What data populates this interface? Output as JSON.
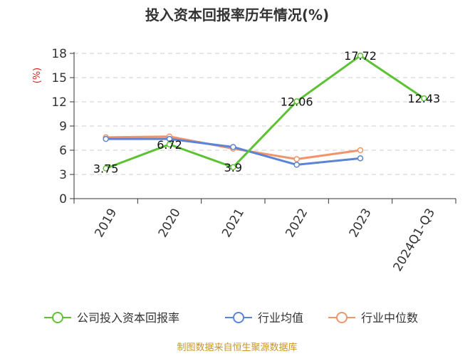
{
  "chart_data": {
    "type": "line",
    "title": "投入资本回报率历年情况(%)",
    "ylabel": "(%)",
    "xlabel": "",
    "categories": [
      "2019",
      "2020",
      "2021",
      "2022",
      "2023",
      "2024Q1-Q3"
    ],
    "yticks": [
      0,
      3,
      6,
      9,
      12,
      15,
      18
    ],
    "ylim": [
      0,
      18
    ],
    "grid": true,
    "legend_position": "bottom",
    "series": [
      {
        "name": "公司投入资本回报率",
        "color": "#5cc234",
        "values": [
          3.75,
          6.72,
          3.9,
          12.06,
          17.72,
          12.43
        ],
        "labels": [
          "3.75",
          "6.72",
          "3.9",
          "12.06",
          "17.72",
          "12.43"
        ]
      },
      {
        "name": "行业均值",
        "color": "#5b84d6",
        "values": [
          7.4,
          7.4,
          6.4,
          4.2,
          5.0,
          null
        ]
      },
      {
        "name": "行业中位数",
        "color": "#f0946a",
        "values": [
          7.6,
          7.7,
          6.2,
          4.9,
          6.0,
          null
        ]
      }
    ],
    "source": "制图数据来自恒生聚源数据库"
  }
}
